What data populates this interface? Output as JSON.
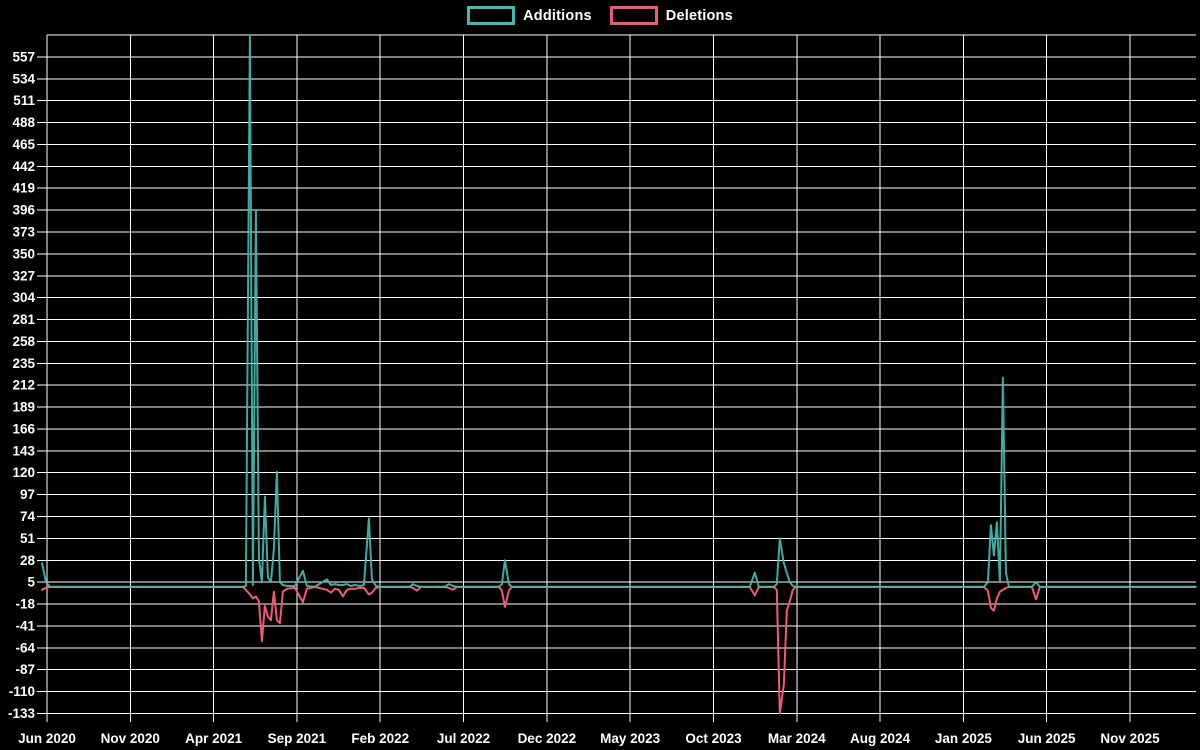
{
  "legend": {
    "items": [
      {
        "label": "Additions",
        "color": "#46b8ae"
      },
      {
        "label": "Deletions",
        "color": "#ee5b76"
      }
    ]
  },
  "colors": {
    "background": "#000000",
    "grid": "#ffffff",
    "text": "#ffffff",
    "additions": "#46b8ae",
    "deletions": "#ee5b76"
  },
  "chart_data": {
    "type": "line",
    "title": "",
    "xlabel": "",
    "ylabel": "",
    "x_unit": "months since Jun 2020 (weekly commit-stat points)",
    "grid": true,
    "legend_position": "top-center",
    "ylim": [
      -133,
      580
    ],
    "y_tick_step": 23,
    "y_ticks": [
      557,
      534,
      511,
      488,
      465,
      442,
      419,
      396,
      373,
      350,
      327,
      304,
      281,
      258,
      235,
      212,
      189,
      166,
      143,
      120,
      97,
      74,
      51,
      28,
      5,
      -18,
      -41,
      -64,
      -87,
      -110,
      -133
    ],
    "y_top_gridline_value": 580,
    "x_tick_labels": [
      "Jun 2020",
      "Nov 2020",
      "Apr 2021",
      "Sep 2021",
      "Feb 2022",
      "Jul 2022",
      "Dec 2022",
      "May 2023",
      "Oct 2023",
      "Mar 2024",
      "Aug 2024",
      "Jan 2025",
      "Jun 2025",
      "Nov 2025"
    ],
    "x_tick_positions": [
      0,
      5,
      10,
      15,
      20,
      25,
      30,
      35,
      40,
      45,
      50,
      55,
      60,
      65
    ],
    "x": [
      -0.3,
      -0.06,
      0.18,
      11.76,
      11.94,
      12.18,
      12.36,
      12.54,
      12.72,
      12.9,
      13.08,
      13.26,
      13.44,
      13.62,
      13.8,
      13.98,
      14.16,
      14.4,
      14.88,
      15.36,
      15.6,
      16.08,
      16.8,
      17.04,
      17.28,
      17.52,
      17.76,
      18.0,
      18.24,
      18.48,
      18.78,
      19.02,
      19.32,
      19.5,
      19.74,
      19.98,
      21.78,
      21.96,
      22.2,
      22.44,
      23.88,
      24.12,
      24.36,
      24.6,
      27.12,
      27.3,
      27.48,
      27.72,
      27.9,
      42.18,
      42.48,
      42.72,
      43.62,
      43.8,
      43.98,
      44.22,
      44.4,
      44.58,
      44.76,
      44.94,
      56.24,
      56.47,
      56.65,
      56.83,
      57.01,
      57.19,
      57.37,
      57.55,
      57.73,
      59.11,
      59.35,
      59.59,
      68.95
    ],
    "series": [
      {
        "name": "Additions",
        "color": "#46b8ae",
        "values": [
          25,
          5,
          0,
          0,
          1,
          580,
          2,
          396,
          30,
          5,
          95,
          10,
          5,
          40,
          121,
          5,
          2,
          1,
          1,
          17,
          1,
          0,
          8,
          2,
          3,
          2,
          2,
          3,
          1,
          2,
          1,
          2,
          72,
          8,
          1,
          0,
          0,
          3,
          1,
          0,
          0,
          3,
          1,
          0,
          0,
          3,
          28,
          3,
          0,
          0,
          15,
          0,
          0,
          3,
          51,
          25,
          15,
          5,
          1,
          0,
          0,
          5,
          65,
          33,
          68,
          5,
          220,
          15,
          0,
          0,
          5,
          0,
          0
        ]
      },
      {
        "name": "Deletions",
        "color": "#ee5b76",
        "values": [
          -3,
          -1,
          0,
          0,
          -3,
          -8,
          -12,
          -10,
          -15,
          -57,
          -20,
          -31,
          -35,
          -5,
          -35,
          -38,
          -5,
          -2,
          -1,
          -16,
          -2,
          0,
          -3,
          -6,
          -2,
          -3,
          -10,
          -3,
          -2,
          -2,
          -1,
          -1,
          -8,
          -6,
          -1,
          0,
          0,
          -1,
          -4,
          0,
          0,
          -1,
          -3,
          0,
          0,
          -4,
          -21,
          -4,
          0,
          0,
          -9,
          0,
          0,
          -3,
          -133,
          -103,
          -25,
          -15,
          -3,
          0,
          0,
          -4,
          -22,
          -25,
          -12,
          -5,
          -3,
          -1,
          0,
          0,
          -13,
          0,
          0
        ]
      }
    ]
  }
}
